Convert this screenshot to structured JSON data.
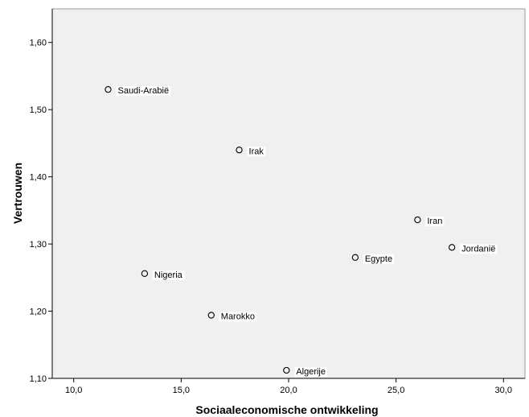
{
  "chart_data": {
    "type": "scatter",
    "title": "",
    "xlabel": "Sociaaleconomische ontwikkeling",
    "ylabel": "Vertrouwen",
    "xlim": [
      9.0,
      31.0
    ],
    "ylim": [
      1.1,
      1.65
    ],
    "xticks": [
      {
        "value": 10,
        "label": "10,0"
      },
      {
        "value": 15,
        "label": "15,0"
      },
      {
        "value": 20,
        "label": "20,0"
      },
      {
        "value": 25,
        "label": "25,0"
      },
      {
        "value": 30,
        "label": "30,0"
      }
    ],
    "yticks": [
      {
        "value": 1.1,
        "label": "1,10"
      },
      {
        "value": 1.2,
        "label": "1,20"
      },
      {
        "value": 1.3,
        "label": "1,30"
      },
      {
        "value": 1.4,
        "label": "1,40"
      },
      {
        "value": 1.5,
        "label": "1,50"
      },
      {
        "value": 1.6,
        "label": "1,60"
      }
    ],
    "grid": false,
    "plot_background": "#f0f0f0",
    "marker": "open-circle",
    "points": [
      {
        "label": "Saudi-Arabië",
        "x": 11.6,
        "y": 1.53
      },
      {
        "label": "Irak",
        "x": 17.7,
        "y": 1.44
      },
      {
        "label": "Iran",
        "x": 26.0,
        "y": 1.336
      },
      {
        "label": "Jordanië",
        "x": 27.6,
        "y": 1.295
      },
      {
        "label": "Egypte",
        "x": 23.1,
        "y": 1.28
      },
      {
        "label": "Nigeria",
        "x": 13.3,
        "y": 1.256
      },
      {
        "label": "Marokko",
        "x": 16.4,
        "y": 1.194
      },
      {
        "label": "Algerije",
        "x": 19.9,
        "y": 1.112
      }
    ]
  }
}
